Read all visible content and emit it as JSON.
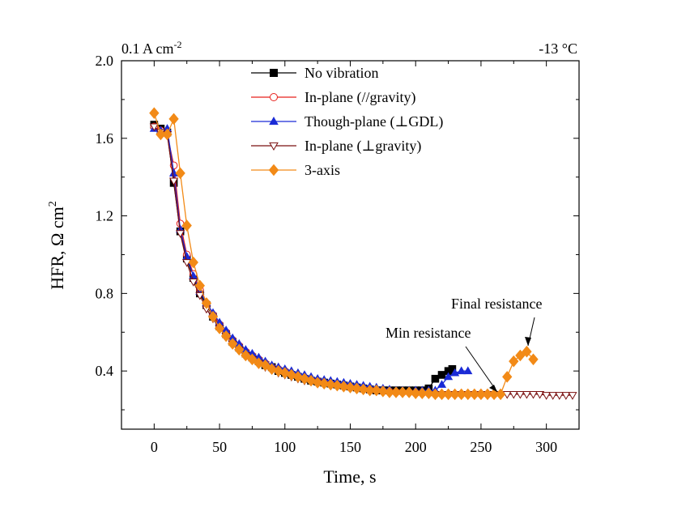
{
  "chart_data": {
    "type": "line",
    "title": "",
    "corner_left": {
      "text": "0.1 A cm",
      "sup": "-2"
    },
    "corner_right": "-13 °C",
    "xlabel": "Time, s",
    "ylabel": {
      "text": "HFR, Ω cm",
      "sup": "2"
    },
    "xlim": [
      -25,
      325
    ],
    "ylim": [
      0.1,
      2.0
    ],
    "x_ticks": [
      0,
      50,
      100,
      150,
      200,
      250,
      300
    ],
    "y_ticks": [
      0.4,
      0.8,
      1.2,
      1.6,
      2.0
    ],
    "x_tick_labels": [
      "0",
      "50",
      "100",
      "150",
      "200",
      "250",
      "300"
    ],
    "y_tick_labels": [
      "0.4",
      "0.8",
      "1.2",
      "1.6",
      "2.0"
    ],
    "legend_position": "top-center",
    "annotations": [
      {
        "text": "Min resistance",
        "target": [
          265,
          0.28
        ]
      },
      {
        "text": "Final resistance",
        "target": [
          287,
          0.5
        ]
      }
    ],
    "series": [
      {
        "name": "No vibration",
        "color": "#000000",
        "marker": "square",
        "fill": "solid",
        "x": [
          0,
          5,
          10,
          15,
          20,
          25,
          30,
          35,
          40,
          45,
          50,
          55,
          60,
          65,
          70,
          75,
          80,
          85,
          90,
          95,
          100,
          105,
          110,
          115,
          120,
          125,
          130,
          135,
          140,
          145,
          150,
          155,
          160,
          165,
          170,
          175,
          180,
          185,
          190,
          195,
          200,
          205,
          210,
          215,
          220,
          225,
          228
        ],
        "y": [
          1.67,
          1.65,
          1.63,
          1.37,
          1.12,
          0.98,
          0.88,
          0.8,
          0.74,
          0.68,
          0.63,
          0.59,
          0.55,
          0.52,
          0.49,
          0.47,
          0.45,
          0.43,
          0.42,
          0.4,
          0.39,
          0.38,
          0.37,
          0.36,
          0.35,
          0.345,
          0.34,
          0.335,
          0.33,
          0.325,
          0.32,
          0.315,
          0.31,
          0.305,
          0.3,
          0.3,
          0.3,
          0.3,
          0.3,
          0.3,
          0.3,
          0.3,
          0.31,
          0.36,
          0.38,
          0.4,
          0.41
        ]
      },
      {
        "name": "In-plane (//gravity)",
        "color": "#e8201c",
        "marker": "circle",
        "fill": "open",
        "x": [
          0,
          5,
          10,
          15,
          20,
          25,
          30,
          35,
          40,
          45,
          50,
          55,
          60,
          65,
          70,
          75,
          80,
          85,
          90,
          95,
          100,
          105,
          110,
          115,
          120,
          125,
          130,
          135,
          140,
          145,
          150,
          155,
          160,
          165,
          170,
          175,
          180,
          185,
          190,
          195,
          200,
          205,
          210,
          215,
          220,
          225,
          230,
          235,
          240,
          245,
          250,
          255,
          260
        ],
        "y": [
          1.66,
          1.64,
          1.62,
          1.46,
          1.16,
          1.0,
          0.9,
          0.82,
          0.75,
          0.69,
          0.64,
          0.6,
          0.56,
          0.53,
          0.5,
          0.48,
          0.46,
          0.44,
          0.42,
          0.41,
          0.4,
          0.38,
          0.37,
          0.36,
          0.355,
          0.35,
          0.34,
          0.335,
          0.33,
          0.32,
          0.315,
          0.31,
          0.305,
          0.3,
          0.3,
          0.295,
          0.295,
          0.29,
          0.29,
          0.29,
          0.285,
          0.285,
          0.285,
          0.28,
          0.28,
          0.28,
          0.28,
          0.28,
          0.28,
          0.28,
          0.28,
          0.28,
          0.28
        ]
      },
      {
        "name": "Though-plane (⊥GDL)",
        "color": "#1a2bd6",
        "marker": "triangle-up",
        "fill": "solid",
        "x": [
          0,
          5,
          10,
          15,
          20,
          25,
          30,
          35,
          40,
          45,
          50,
          55,
          60,
          65,
          70,
          75,
          80,
          85,
          90,
          95,
          100,
          105,
          110,
          115,
          120,
          125,
          130,
          135,
          140,
          145,
          150,
          155,
          160,
          165,
          170,
          175,
          180,
          185,
          190,
          195,
          200,
          205,
          210,
          215,
          220,
          225,
          230,
          235,
          240
        ],
        "y": [
          1.65,
          1.64,
          1.65,
          1.42,
          1.13,
          0.99,
          0.89,
          0.81,
          0.75,
          0.7,
          0.65,
          0.61,
          0.57,
          0.54,
          0.51,
          0.49,
          0.47,
          0.45,
          0.43,
          0.42,
          0.41,
          0.4,
          0.39,
          0.38,
          0.37,
          0.36,
          0.355,
          0.35,
          0.345,
          0.34,
          0.335,
          0.33,
          0.325,
          0.32,
          0.315,
          0.31,
          0.305,
          0.3,
          0.3,
          0.3,
          0.3,
          0.3,
          0.3,
          0.3,
          0.33,
          0.37,
          0.39,
          0.4,
          0.4
        ]
      },
      {
        "name": "In-plane (⊥gravity)",
        "color": "#7a1010",
        "marker": "triangle-down",
        "fill": "open",
        "x": [
          0,
          5,
          10,
          15,
          20,
          25,
          30,
          35,
          40,
          45,
          50,
          55,
          60,
          65,
          70,
          75,
          80,
          85,
          90,
          95,
          100,
          105,
          110,
          115,
          120,
          125,
          130,
          135,
          140,
          145,
          150,
          155,
          160,
          165,
          170,
          175,
          180,
          185,
          190,
          195,
          200,
          205,
          210,
          215,
          220,
          225,
          230,
          235,
          240,
          245,
          250,
          255,
          260,
          265,
          270,
          275,
          280,
          285,
          290,
          295,
          300,
          305,
          310,
          315,
          320
        ],
        "y": [
          1.66,
          1.63,
          1.62,
          1.38,
          1.11,
          0.96,
          0.86,
          0.79,
          0.72,
          0.67,
          0.62,
          0.58,
          0.54,
          0.51,
          0.48,
          0.46,
          0.44,
          0.42,
          0.41,
          0.39,
          0.38,
          0.37,
          0.36,
          0.35,
          0.345,
          0.34,
          0.33,
          0.325,
          0.32,
          0.315,
          0.31,
          0.305,
          0.3,
          0.3,
          0.295,
          0.29,
          0.29,
          0.29,
          0.285,
          0.285,
          0.285,
          0.28,
          0.28,
          0.28,
          0.28,
          0.28,
          0.28,
          0.28,
          0.28,
          0.28,
          0.28,
          0.28,
          0.28,
          0.28,
          0.28,
          0.28,
          0.28,
          0.28,
          0.28,
          0.28,
          0.275,
          0.275,
          0.275,
          0.275,
          0.275
        ]
      },
      {
        "name": "3-axis",
        "color": "#f28a17",
        "marker": "diamond",
        "fill": "solid",
        "x": [
          0,
          5,
          10,
          15,
          20,
          25,
          30,
          35,
          40,
          45,
          50,
          55,
          60,
          65,
          70,
          75,
          80,
          85,
          90,
          95,
          100,
          105,
          110,
          115,
          120,
          125,
          130,
          135,
          140,
          145,
          150,
          155,
          160,
          165,
          170,
          175,
          180,
          185,
          190,
          195,
          200,
          205,
          210,
          215,
          220,
          225,
          230,
          235,
          240,
          245,
          250,
          255,
          260,
          265,
          270,
          275,
          280,
          285,
          290
        ],
        "y": [
          1.73,
          1.62,
          1.62,
          1.7,
          1.42,
          1.15,
          0.96,
          0.84,
          0.75,
          0.68,
          0.62,
          0.58,
          0.54,
          0.51,
          0.48,
          0.46,
          0.44,
          0.43,
          0.41,
          0.4,
          0.39,
          0.38,
          0.37,
          0.36,
          0.35,
          0.34,
          0.335,
          0.33,
          0.325,
          0.32,
          0.315,
          0.31,
          0.305,
          0.3,
          0.3,
          0.295,
          0.29,
          0.29,
          0.29,
          0.29,
          0.285,
          0.285,
          0.285,
          0.28,
          0.28,
          0.28,
          0.28,
          0.28,
          0.28,
          0.28,
          0.28,
          0.28,
          0.28,
          0.28,
          0.37,
          0.45,
          0.48,
          0.5,
          0.46
        ]
      }
    ]
  }
}
